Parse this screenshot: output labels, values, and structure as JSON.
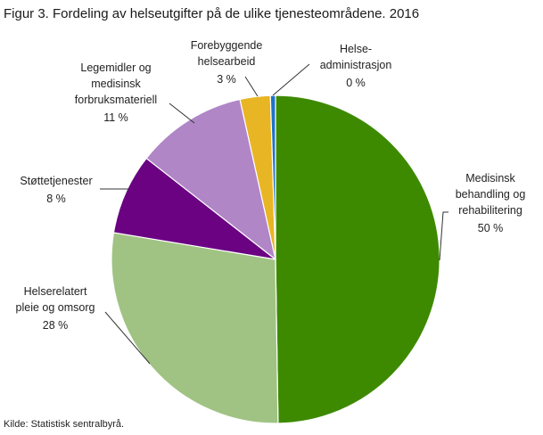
{
  "title": "Figur 3. Fordeling av helseutgifter på de ulike tjenesteområdene. 2016",
  "source": "Kilde: Statistisk sentralbyrå.",
  "chart_data": {
    "type": "pie",
    "title": "Figur 3. Fordeling av helseutgifter på de ulike tjenesteområdene. 2016",
    "unit": "%",
    "slices": [
      {
        "key": "medisinsk",
        "value": 50,
        "color": "#3d8a00",
        "label_lines": [
          "Medisinsk",
          "behandling og",
          "rehabilitering"
        ],
        "value_label": "50 %"
      },
      {
        "key": "pleie",
        "value": 28,
        "color": "#a0c383",
        "label_lines": [
          "Helserelatert",
          "pleie og omsorg"
        ],
        "value_label": "28 %"
      },
      {
        "key": "stotte",
        "value": 8,
        "color": "#6a0282",
        "label_lines": [
          "Støttetjenester"
        ],
        "value_label": "8 %"
      },
      {
        "key": "legemidler",
        "value": 11,
        "color": "#b086c6",
        "label_lines": [
          "Legemidler  og",
          "medisinsk",
          "forbruksmateriell"
        ],
        "value_label": "11 %"
      },
      {
        "key": "forebyggende",
        "value": 3,
        "color": "#e8b524",
        "label_lines": [
          "Forebyggende",
          "helsearbeid"
        ],
        "value_label": "3 %"
      },
      {
        "key": "administrasjon",
        "value": 0.5,
        "color": "#1e72c8",
        "label_lines": [
          "Helse-",
          "administrasjon"
        ],
        "value_label": "0 %"
      }
    ]
  }
}
